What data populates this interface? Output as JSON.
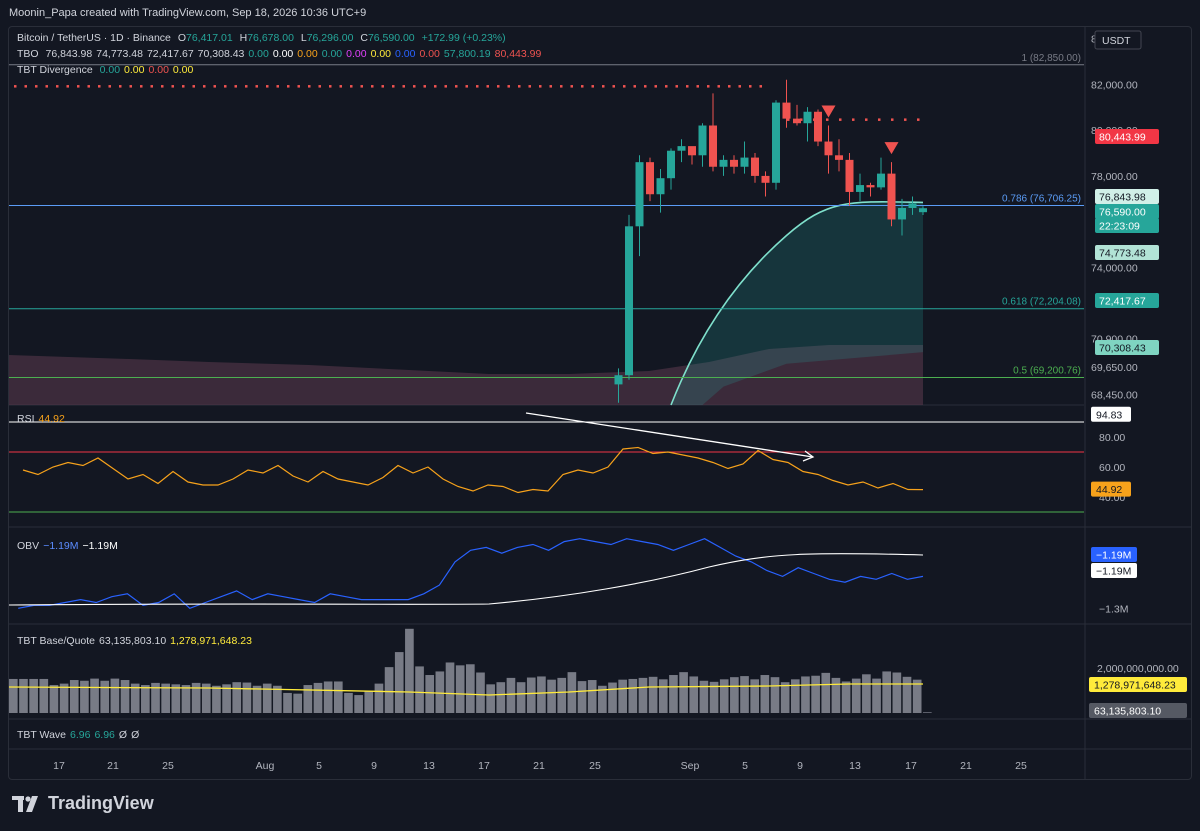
{
  "header": {
    "attribution": "Moonin_Papa created with TradingView.com, Sep 18, 2026 10:36 UTC+9"
  },
  "colors": {
    "background": "#131722",
    "up": "#26a69a",
    "down": "#ef5350",
    "rsi_line": "#f7a21b",
    "obv_line": "#2962ff",
    "obv_ma": "#ffffff",
    "volume_bar": "#787b86",
    "volume_ma": "#ffeb3b",
    "fib_line": "#5b9cf6"
  },
  "legend": {
    "symbol": {
      "name": "Bitcoin / TetherUS · 1D · Binance",
      "o_label": "O",
      "o": "76,417.01",
      "h_label": "H",
      "h": "76,678.00",
      "l_label": "L",
      "l": "76,296.00",
      "c_label": "C",
      "c": "76,590.00",
      "change": "+172.99 (+0.23%)"
    },
    "tbo": {
      "name": "TBO",
      "values": [
        "76,843.98",
        "74,773.48",
        "72,417.67",
        "70,308.43",
        "0.00",
        "0.00",
        "0.00",
        "0.00",
        "0.00",
        "0.00",
        "0.00",
        "0.00",
        "57,800.19",
        "80,443.99"
      ],
      "colors": [
        "#d1d4dc",
        "#d1d4dc",
        "#d1d4dc",
        "#d1d4dc",
        "#26a69a",
        "#ffffff",
        "#f7a21b",
        "#26a69a",
        "#e040fb",
        "#ffeb3b",
        "#2962ff",
        "#ef5350",
        "#26a69a",
        "#ef5350"
      ]
    },
    "divergence": {
      "name": "TBT Divergence",
      "values": [
        "0.00",
        "0.00",
        "0.00",
        "0.00"
      ],
      "colors": [
        "#26a69a",
        "#ffeb3b",
        "#ef5350",
        "#ffeb3b"
      ]
    },
    "rsi": {
      "name": "RSI",
      "value": "44.92"
    },
    "obv": {
      "name": "OBV",
      "value1": "−1.19M",
      "value2": "−1.19M"
    },
    "volume": {
      "name": "TBT Base/Quote",
      "value1": "63,135,803.10",
      "value2": "1,278,971,648.23"
    },
    "wave": {
      "name": "TBT Wave",
      "value1": "6.96",
      "value2": "6.96",
      "value3": "Ø",
      "value4": "Ø"
    }
  },
  "price_axis": {
    "currency": "USDT",
    "ticks": [
      "84,000.00",
      "82,000.00",
      "80,000.00",
      "78,000.00",
      "74,000.00",
      "70,900.00",
      "69,650.00",
      "68,450.00"
    ],
    "badges": [
      {
        "text": "80,443.99",
        "bg": "#f23645",
        "fg": "#ffffff"
      },
      {
        "text": "76,843.98",
        "bg": "#d1f0e8",
        "fg": "#131722"
      },
      {
        "text": "76,590.00",
        "bg": "#26a69a",
        "fg": "#ffffff"
      },
      {
        "text": "22:23:09",
        "bg": "#26a69a",
        "fg": "#ffffff"
      },
      {
        "text": "74,773.48",
        "bg": "#b2e3d6",
        "fg": "#131722"
      },
      {
        "text": "72,417.67",
        "bg": "#26a69a",
        "fg": "#ffffff"
      },
      {
        "text": "70,308.43",
        "bg": "#7fd4c1",
        "fg": "#131722"
      }
    ]
  },
  "fib_levels": [
    {
      "label": "1 (82,850.00)",
      "price": 82850,
      "color": "#787b86"
    },
    {
      "label": "0.786 (76,706.25)",
      "price": 76706.25,
      "color": "#5b9cf6"
    },
    {
      "label": "0.618 (72,204.08)",
      "price": 72204.08,
      "color": "#26a69a"
    },
    {
      "label": "0.5 (69,200.76)",
      "price": 69200.76,
      "color": "#4caf50"
    }
  ],
  "rsi_axis": {
    "ticks": [
      "80.00",
      "60.00",
      "40.00"
    ],
    "badges": [
      {
        "text": "94.83",
        "bg": "#ffffff",
        "fg": "#131722"
      },
      {
        "text": "44.92",
        "bg": "#f7a21b",
        "fg": "#131722"
      }
    ]
  },
  "obv_axis": {
    "ticks": [
      "−1.3M"
    ],
    "badges": [
      {
        "text": "−1.19M",
        "bg": "#2962ff",
        "fg": "#ffffff"
      },
      {
        "text": "−1.19M",
        "bg": "#ffffff",
        "fg": "#131722"
      }
    ]
  },
  "volume_axis": {
    "ticks": [
      "2,000,000,000.00"
    ],
    "badges": [
      {
        "text": "1,278,971,648.23",
        "bg": "#ffeb3b",
        "fg": "#131722"
      },
      {
        "text": "63,135,803.10",
        "bg": "#555963",
        "fg": "#ffffff"
      }
    ]
  },
  "time_axis": {
    "labels": [
      "17",
      "21",
      "25",
      "Aug",
      "5",
      "9",
      "13",
      "17",
      "21",
      "25",
      "Sep",
      "5",
      "9",
      "13",
      "17",
      "21",
      "25"
    ]
  },
  "branding": {
    "logo_text": "TradingView"
  },
  "chart_data": {
    "type": "candlestick",
    "price_ylim": [
      68000,
      84500
    ],
    "candles": [
      [
        68900,
        69600,
        68100,
        69300
      ],
      [
        69300,
        76300,
        69100,
        75800
      ],
      [
        75800,
        78900,
        74500,
        78600
      ],
      [
        78600,
        78800,
        76900,
        77200
      ],
      [
        77200,
        78300,
        76400,
        77900
      ],
      [
        77900,
        79200,
        77400,
        79100
      ],
      [
        79100,
        79600,
        78600,
        79300
      ],
      [
        79300,
        79200,
        78500,
        78900
      ],
      [
        78900,
        80300,
        78400,
        80200
      ],
      [
        80200,
        81600,
        78200,
        78400
      ],
      [
        78400,
        78900,
        78000,
        78700
      ],
      [
        78700,
        78900,
        78100,
        78400
      ],
      [
        78400,
        79500,
        78100,
        78800
      ],
      [
        78800,
        79000,
        77700,
        78000
      ],
      [
        78000,
        78200,
        77100,
        77700
      ],
      [
        77700,
        81300,
        77400,
        81200
      ],
      [
        81200,
        82200,
        80100,
        80500
      ],
      [
        80500,
        81100,
        80200,
        80300
      ],
      [
        80300,
        81000,
        79500,
        80800
      ],
      [
        80800,
        80900,
        79300,
        79500
      ],
      [
        79500,
        80200,
        78100,
        78900
      ],
      [
        78900,
        79600,
        78200,
        78700
      ],
      [
        78700,
        79000,
        76700,
        77300
      ],
      [
        77300,
        78100,
        76900,
        77600
      ],
      [
        77600,
        77700,
        77100,
        77500
      ],
      [
        77500,
        78800,
        77400,
        78100
      ],
      [
        78100,
        78600,
        75800,
        76100
      ],
      [
        76100,
        77000,
        75400,
        76600
      ],
      [
        76600,
        77100,
        76300,
        76800
      ],
      [
        76417.01,
        76678,
        76296,
        76590
      ]
    ],
    "rsi": [
      58,
      55,
      60,
      63,
      61,
      66,
      59,
      52,
      55,
      49,
      57,
      50,
      48,
      48,
      52,
      58,
      56,
      61,
      54,
      50,
      57,
      52,
      50,
      48,
      53,
      61,
      56,
      60,
      52,
      47,
      44,
      48,
      47,
      43,
      45,
      44,
      55,
      58,
      56,
      60,
      72,
      73,
      69,
      70,
      68,
      66,
      63,
      59,
      62,
      71,
      65,
      63,
      57,
      55,
      51,
      48,
      50,
      46,
      49,
      45,
      44.92
    ],
    "rsi_ylim": [
      20,
      100
    ],
    "obv": [
      -1.3,
      -1.29,
      -1.29,
      -1.28,
      -1.27,
      -1.28,
      -1.26,
      -1.25,
      -1.29,
      -1.28,
      -1.25,
      -1.3,
      -1.28,
      -1.26,
      -1.24,
      -1.27,
      -1.25,
      -1.26,
      -1.27,
      -1.28,
      -1.25,
      -1.26,
      -1.27,
      -1.27,
      -1.27,
      -1.27,
      -1.25,
      -1.22,
      -1.14,
      -1.1,
      -1.09,
      -1.11,
      -1.09,
      -1.08,
      -1.1,
      -1.07,
      -1.06,
      -1.07,
      -1.08,
      -1.06,
      -1.07,
      -1.08,
      -1.1,
      -1.08,
      -1.06,
      -1.09,
      -1.12,
      -1.14,
      -1.17,
      -1.19,
      -1.16,
      -1.18,
      -1.2,
      -1.21,
      -1.19,
      -1.2,
      -1.18,
      -1.2,
      -1.19
    ],
    "obv_ylim": [
      -1.33,
      -1.03
    ],
    "volume": [
      0.95,
      0.95,
      0.95,
      0.95,
      0.78,
      0.82,
      0.92,
      0.9,
      0.96,
      0.9,
      0.96,
      0.92,
      0.82,
      0.78,
      0.84,
      0.82,
      0.8,
      0.78,
      0.84,
      0.82,
      0.76,
      0.8,
      0.86,
      0.85,
      0.76,
      0.82,
      0.76,
      0.56,
      0.54,
      0.78,
      0.84,
      0.88,
      0.88,
      0.56,
      0.5,
      0.62,
      0.82,
      1.28,
      1.7,
      2.35,
      1.3,
      1.06,
      1.16,
      1.41,
      1.33,
      1.36,
      1.13,
      0.8,
      0.86,
      0.98,
      0.86,
      0.99,
      1.02,
      0.93,
      0.98,
      1.14,
      0.89,
      0.92,
      0.76,
      0.85,
      0.93,
      0.95,
      0.98,
      1.01,
      0.94,
      1.06,
      1.14,
      1.02,
      0.9,
      0.87,
      0.94,
      1.0,
      1.03,
      0.94,
      1.06,
      1.0,
      0.86,
      0.94,
      1.02,
      1.04,
      1.12,
      0.98,
      0.88,
      0.96,
      1.08,
      0.96,
      1.16,
      1.13,
      1.01,
      0.93,
      0.02
    ],
    "volume_ylim": [
      0,
      2.4
    ]
  }
}
